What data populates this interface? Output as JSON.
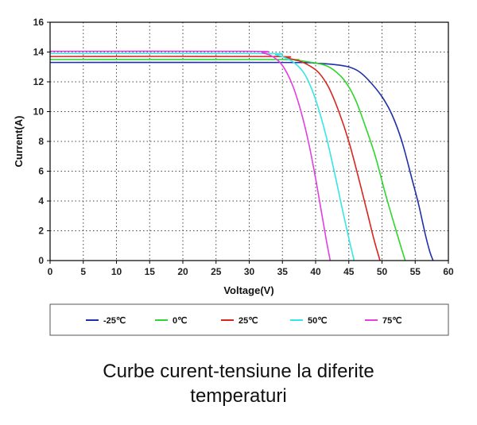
{
  "chart_data": {
    "type": "line",
    "title": "",
    "xlabel": "Voltage(V)",
    "ylabel": "Current(A)",
    "xlim": [
      0,
      60
    ],
    "ylim": [
      0,
      16
    ],
    "xticks": [
      0,
      5,
      10,
      15,
      20,
      25,
      30,
      35,
      40,
      45,
      50,
      55,
      60
    ],
    "yticks": [
      0,
      2,
      4,
      6,
      8,
      10,
      12,
      14,
      16
    ],
    "grid": true,
    "legend_position": "bottom",
    "series": [
      {
        "name": "-25℃",
        "color": "#1f2fa8",
        "x": [
          0,
          35,
          40,
          43,
          45,
          46.5,
          48,
          50,
          51.5,
          53,
          54.5,
          55.5,
          56.5,
          57.2,
          57.7
        ],
        "y": [
          13.3,
          13.3,
          13.25,
          13.15,
          13.0,
          12.7,
          12.1,
          11.0,
          9.8,
          8.0,
          5.5,
          3.8,
          1.8,
          0.6,
          0
        ]
      },
      {
        "name": "0℃",
        "color": "#2fd62f",
        "x": [
          0,
          34,
          37,
          39.5,
          41.5,
          43,
          44.5,
          46,
          47.5,
          49,
          50.5,
          51.8,
          52.8,
          53.5
        ],
        "y": [
          13.5,
          13.5,
          13.45,
          13.3,
          13.1,
          12.7,
          12.0,
          10.8,
          9.0,
          7.0,
          4.5,
          2.5,
          1.0,
          0
        ]
      },
      {
        "name": "25℃",
        "color": "#d8261f",
        "x": [
          0,
          33,
          35.5,
          37.5,
          39,
          40.5,
          42,
          43.5,
          45,
          46.5,
          47.8,
          48.8,
          49.7
        ],
        "y": [
          13.7,
          13.7,
          13.6,
          13.4,
          13.1,
          12.6,
          11.6,
          10.0,
          8.0,
          5.5,
          3.2,
          1.4,
          0
        ]
      },
      {
        "name": "50℃",
        "color": "#35e6e6",
        "x": [
          0,
          32,
          34,
          35.5,
          37,
          38.5,
          40,
          41.5,
          42.8,
          44,
          45,
          45.8
        ],
        "y": [
          13.9,
          13.9,
          13.8,
          13.6,
          13.2,
          12.4,
          10.8,
          8.5,
          6.0,
          3.5,
          1.5,
          0
        ]
      },
      {
        "name": "75℃",
        "color": "#e33ee0",
        "x": [
          0,
          30,
          32,
          33.5,
          35,
          36.5,
          37.8,
          39,
          40,
          40.9,
          41.6,
          42.2
        ],
        "y": [
          14.05,
          14.05,
          13.95,
          13.7,
          13.1,
          11.8,
          10.0,
          7.8,
          5.5,
          3.2,
          1.4,
          0
        ]
      }
    ]
  },
  "caption": {
    "line1": "Curbe curent-tensiune la diferite",
    "line2": "temperaturi"
  }
}
